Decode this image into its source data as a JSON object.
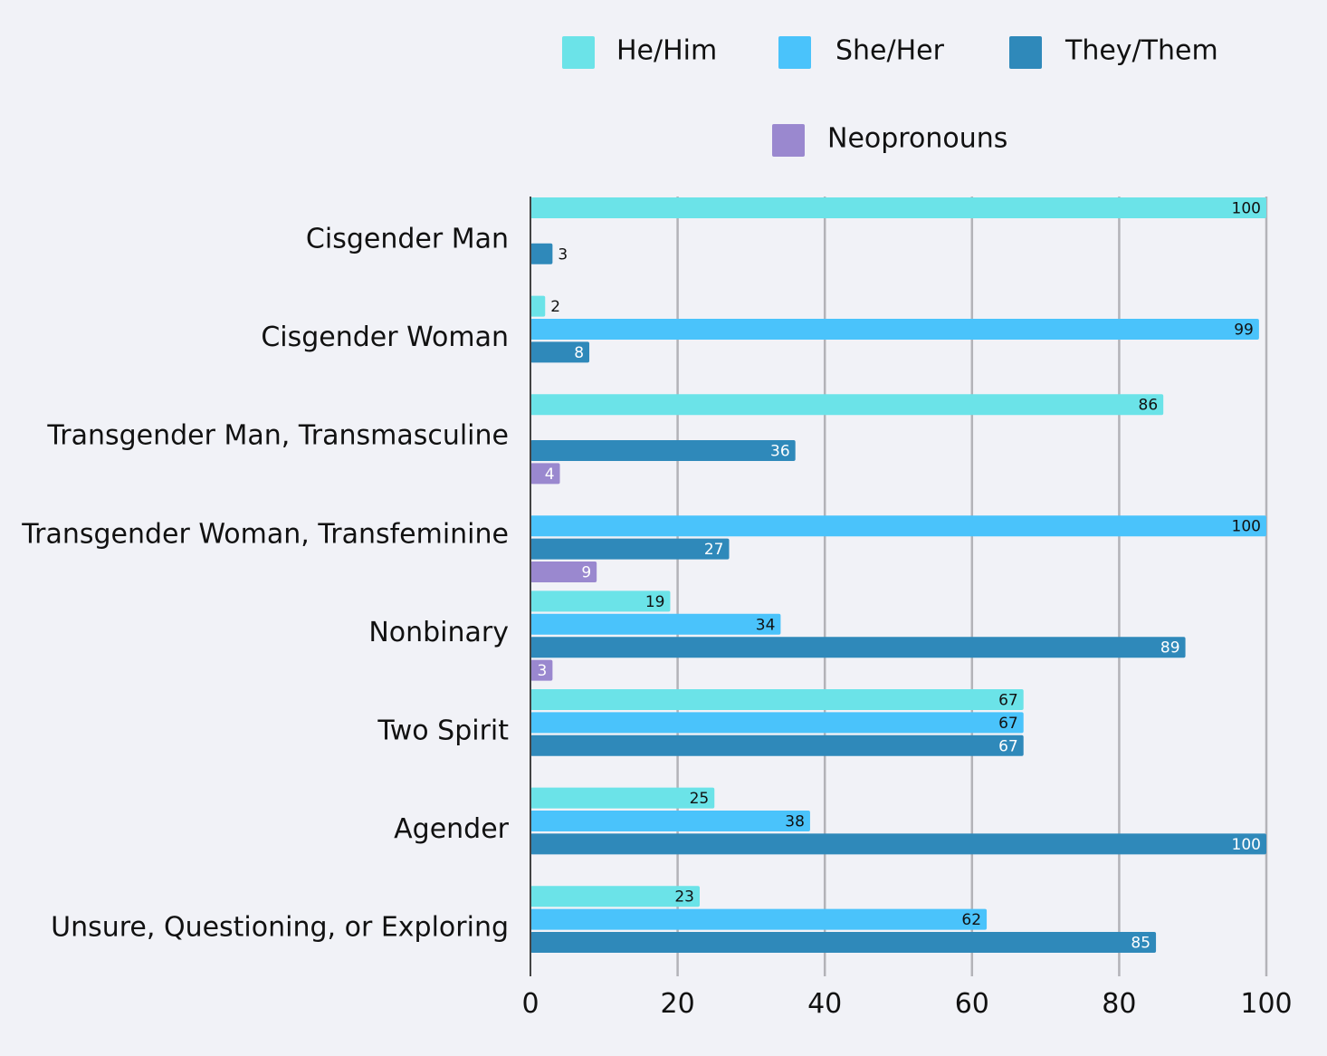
{
  "chart_data": {
    "type": "bar",
    "orientation": "horizontal",
    "title": "",
    "xlabel": "",
    "ylabel": "",
    "xlim": [
      0,
      100
    ],
    "xticks": [
      0,
      20,
      40,
      60,
      80,
      100
    ],
    "grid": true,
    "legend_position": "top",
    "categories": [
      "Cisgender Man",
      "Cisgender Woman",
      "Transgender Man, Transmasculine",
      "Transgender Woman, Transfeminine",
      "Nonbinary",
      "Two Spirit",
      "Agender",
      "Unsure, Questioning, or Exploring"
    ],
    "series": [
      {
        "name": "He/Him",
        "color": "#6be3e8",
        "label_color": "#111111",
        "values": [
          100,
          2,
          86,
          null,
          19,
          67,
          25,
          23
        ]
      },
      {
        "name": "She/Her",
        "color": "#4ac3fb",
        "label_color": "#111111",
        "values": [
          null,
          99,
          null,
          100,
          34,
          67,
          38,
          62
        ]
      },
      {
        "name": "They/Them",
        "color": "#2f89ba",
        "label_color": "#ffffff",
        "values": [
          3,
          8,
          36,
          27,
          89,
          67,
          100,
          85
        ]
      },
      {
        "name": "Neopronouns",
        "color": "#9a88cf",
        "label_color": "#ffffff",
        "values": [
          null,
          null,
          4,
          9,
          3,
          null,
          null,
          null
        ]
      }
    ]
  }
}
